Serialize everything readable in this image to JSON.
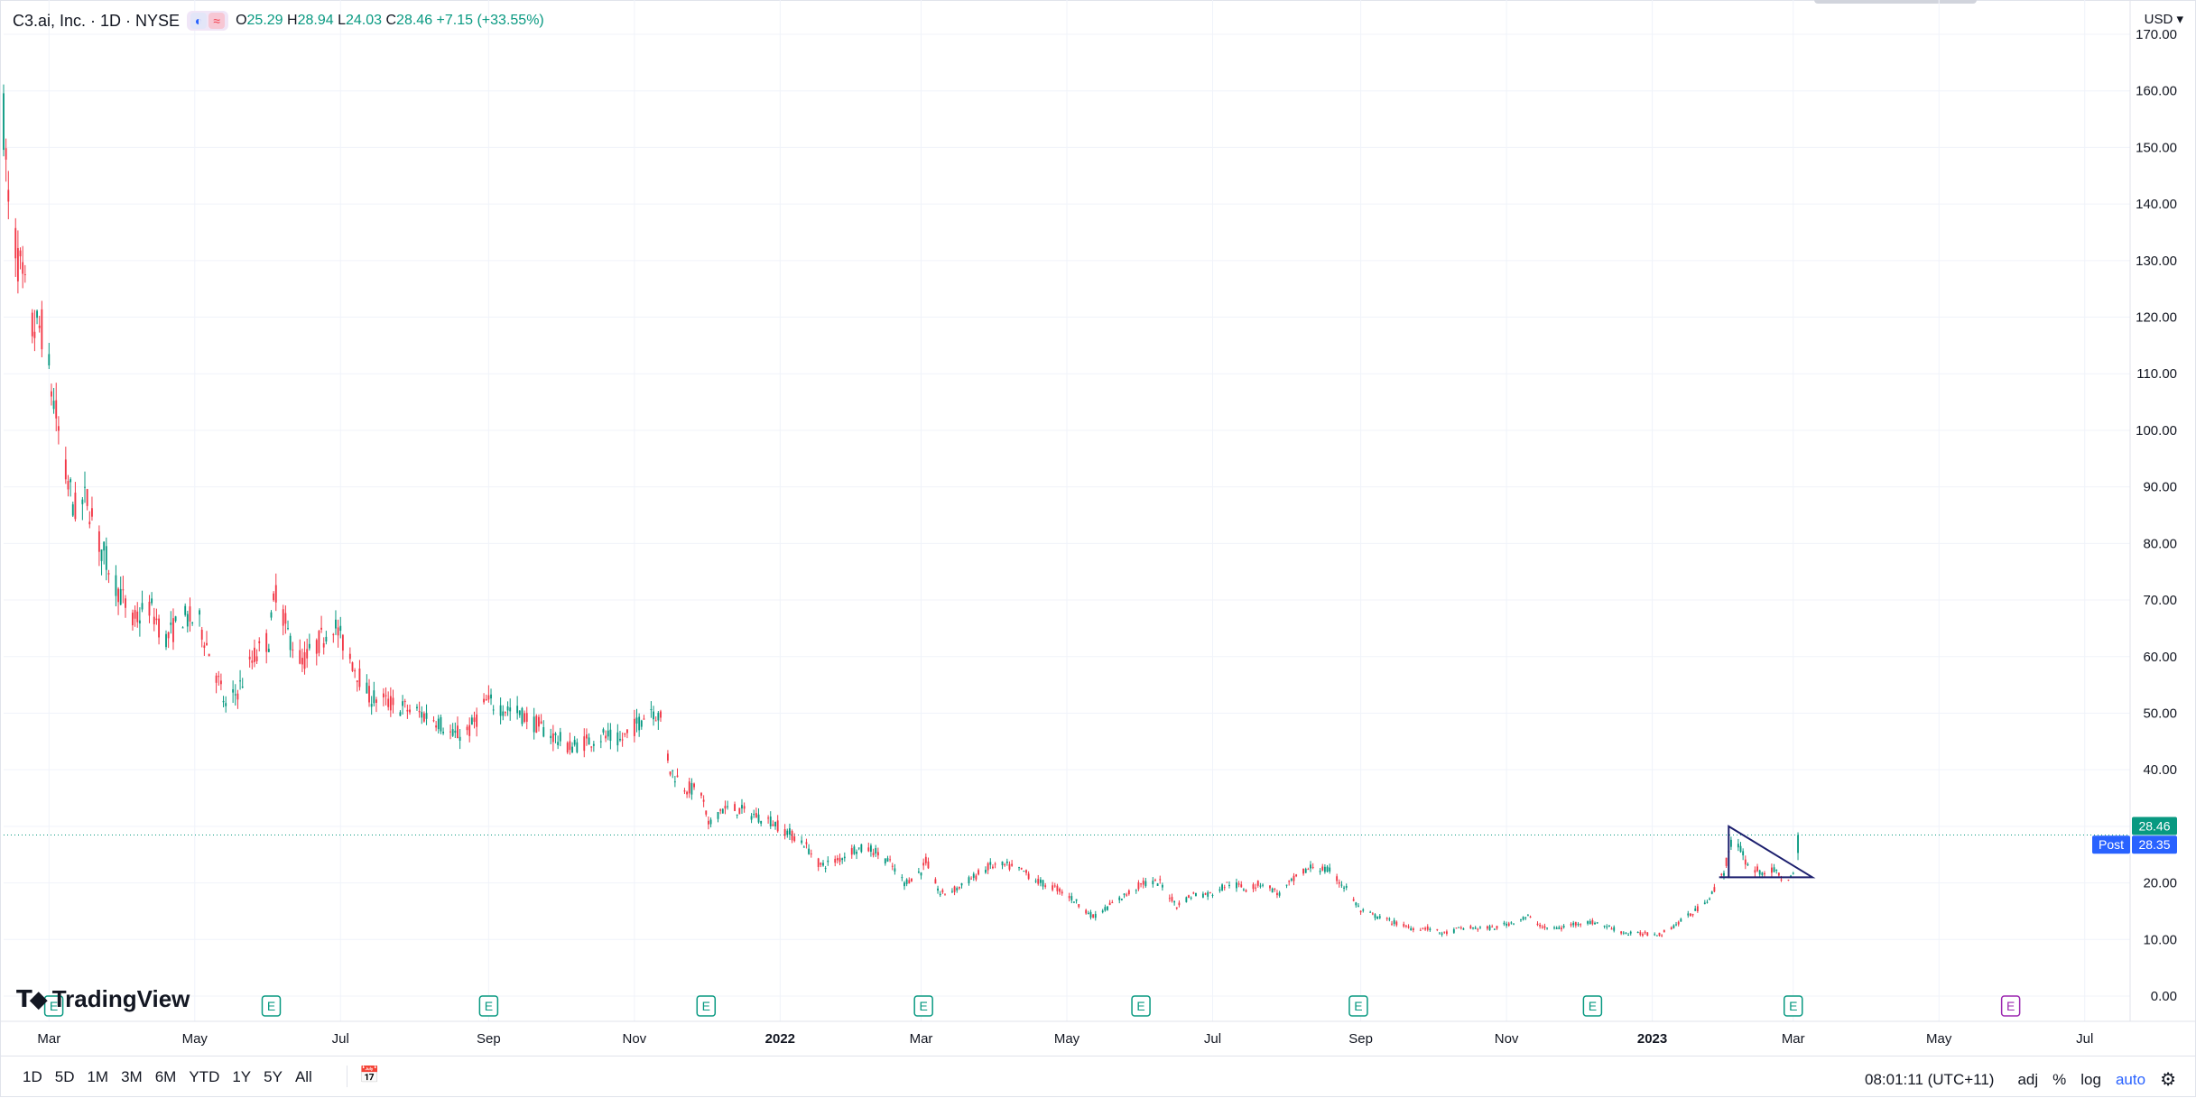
{
  "legend": {
    "title": "C3.ai, Inc. · 1D · NYSE",
    "icons": [
      "moon-icon",
      "wave-icon"
    ],
    "open_label": "O",
    "open_value": "25.29",
    "high_label": "H",
    "high_value": "28.94",
    "low_label": "L",
    "low_value": "24.03",
    "close_label": "C",
    "close_value": "28.46",
    "change": "+7.15 (+33.55%)"
  },
  "currency": "USD",
  "logo": {
    "text": "TradingView"
  },
  "bottom_bar": {
    "ranges": [
      "1D",
      "5D",
      "1M",
      "3M",
      "6M",
      "YTD",
      "1Y",
      "5Y",
      "All"
    ],
    "clock": "08:01:11 (UTC+11)",
    "adj": "adj",
    "percent": "%",
    "log": "log",
    "auto": "auto"
  },
  "colors": {
    "up": "#089981",
    "down": "#f23645",
    "grid": "#f0f3fa",
    "accent": "#2962ff",
    "earnings": "#089981",
    "earnings_future": "#9c27b0",
    "pattern": "#1c1f6e"
  },
  "chart_data": {
    "type": "candlestick",
    "title": "C3.ai, Inc. · 1D · NYSE",
    "y_axis": {
      "min": 0,
      "max": 170,
      "ticks": [
        "0.00",
        "10.00",
        "20.00",
        "30.00",
        "40.00",
        "50.00",
        "60.00",
        "70.00",
        "80.00",
        "90.00",
        "100.00",
        "110.00",
        "120.00",
        "130.00",
        "140.00",
        "150.00",
        "160.00",
        "170.00"
      ]
    },
    "x_axis": {
      "start": "2021-02-10",
      "end": "2023-07-20",
      "ticks": [
        {
          "date": "2021-03-01",
          "label": "Mar",
          "bold": false
        },
        {
          "date": "2021-05-01",
          "label": "May",
          "bold": false
        },
        {
          "date": "2021-07-01",
          "label": "Jul",
          "bold": false
        },
        {
          "date": "2021-09-01",
          "label": "Sep",
          "bold": false
        },
        {
          "date": "2021-11-01",
          "label": "Nov",
          "bold": false
        },
        {
          "date": "2022-01-01",
          "label": "2022",
          "bold": true
        },
        {
          "date": "2022-03-01",
          "label": "Mar",
          "bold": false
        },
        {
          "date": "2022-05-01",
          "label": "May",
          "bold": false
        },
        {
          "date": "2022-07-01",
          "label": "Jul",
          "bold": false
        },
        {
          "date": "2022-09-01",
          "label": "Sep",
          "bold": false
        },
        {
          "date": "2022-11-01",
          "label": "Nov",
          "bold": false
        },
        {
          "date": "2023-01-01",
          "label": "2023",
          "bold": true
        },
        {
          "date": "2023-03-01",
          "label": "Mar",
          "bold": false
        },
        {
          "date": "2023-05-01",
          "label": "May",
          "bold": false
        },
        {
          "date": "2023-07-01",
          "label": "Jul",
          "bold": false
        }
      ]
    },
    "price_path": [
      [
        "2021-02-10",
        155
      ],
      [
        "2021-02-12",
        140
      ],
      [
        "2021-02-17",
        128
      ],
      [
        "2021-02-22",
        118
      ],
      [
        "2021-02-26",
        118
      ],
      [
        "2021-03-03",
        105
      ],
      [
        "2021-03-08",
        92
      ],
      [
        "2021-03-12",
        86
      ],
      [
        "2021-03-17",
        88
      ],
      [
        "2021-03-22",
        80
      ],
      [
        "2021-03-29",
        73
      ],
      [
        "2021-04-05",
        66
      ],
      [
        "2021-04-12",
        69
      ],
      [
        "2021-04-19",
        63
      ],
      [
        "2021-04-26",
        67
      ],
      [
        "2021-05-03",
        66
      ],
      [
        "2021-05-10",
        57
      ],
      [
        "2021-05-14",
        51
      ],
      [
        "2021-05-19",
        54
      ],
      [
        "2021-05-26",
        60
      ],
      [
        "2021-06-01",
        63
      ],
      [
        "2021-06-04",
        72
      ],
      [
        "2021-06-09",
        64
      ],
      [
        "2021-06-15",
        59
      ],
      [
        "2021-06-21",
        62
      ],
      [
        "2021-06-28",
        66
      ],
      [
        "2021-07-06",
        59
      ],
      [
        "2021-07-13",
        53
      ],
      [
        "2021-07-20",
        52
      ],
      [
        "2021-07-27",
        51
      ],
      [
        "2021-08-03",
        50
      ],
      [
        "2021-08-10",
        49
      ],
      [
        "2021-08-17",
        46
      ],
      [
        "2021-08-24",
        47
      ],
      [
        "2021-08-31",
        52
      ],
      [
        "2021-09-07",
        51
      ],
      [
        "2021-09-14",
        50
      ],
      [
        "2021-09-21",
        48
      ],
      [
        "2021-09-28",
        46
      ],
      [
        "2021-10-05",
        44
      ],
      [
        "2021-10-12",
        45
      ],
      [
        "2021-10-19",
        46
      ],
      [
        "2021-10-26",
        45
      ],
      [
        "2021-11-02",
        48
      ],
      [
        "2021-11-08",
        51
      ],
      [
        "2021-11-12",
        49
      ],
      [
        "2021-11-16",
        40
      ],
      [
        "2021-11-22",
        37
      ],
      [
        "2021-11-29",
        36
      ],
      [
        "2021-12-02",
        30
      ],
      [
        "2021-12-07",
        33
      ],
      [
        "2021-12-14",
        33
      ],
      [
        "2021-12-21",
        32
      ],
      [
        "2021-12-28",
        31
      ],
      [
        "2022-01-04",
        29
      ],
      [
        "2022-01-11",
        27
      ],
      [
        "2022-01-18",
        23
      ],
      [
        "2022-01-25",
        24
      ],
      [
        "2022-02-01",
        26
      ],
      [
        "2022-02-08",
        26
      ],
      [
        "2022-02-15",
        24
      ],
      [
        "2022-02-22",
        20
      ],
      [
        "2022-03-01",
        22
      ],
      [
        "2022-03-03",
        24
      ],
      [
        "2022-03-09",
        18
      ],
      [
        "2022-03-16",
        19
      ],
      [
        "2022-03-23",
        21
      ],
      [
        "2022-03-30",
        23
      ],
      [
        "2022-04-06",
        23
      ],
      [
        "2022-04-13",
        22
      ],
      [
        "2022-04-20",
        20
      ],
      [
        "2022-04-27",
        19
      ],
      [
        "2022-05-04",
        17
      ],
      [
        "2022-05-12",
        14
      ],
      [
        "2022-05-19",
        16
      ],
      [
        "2022-05-26",
        18
      ],
      [
        "2022-06-02",
        20
      ],
      [
        "2022-06-09",
        20
      ],
      [
        "2022-06-16",
        16
      ],
      [
        "2022-06-23",
        18
      ],
      [
        "2022-06-30",
        18
      ],
      [
        "2022-07-08",
        20
      ],
      [
        "2022-07-15",
        19
      ],
      [
        "2022-07-22",
        20
      ],
      [
        "2022-07-29",
        18
      ],
      [
        "2022-08-05",
        21
      ],
      [
        "2022-08-12",
        23
      ],
      [
        "2022-08-19",
        22
      ],
      [
        "2022-08-26",
        19
      ],
      [
        "2022-09-01",
        15
      ],
      [
        "2022-09-08",
        14
      ],
      [
        "2022-09-15",
        13
      ],
      [
        "2022-09-22",
        12
      ],
      [
        "2022-09-29",
        12
      ],
      [
        "2022-10-06",
        11
      ],
      [
        "2022-10-13",
        12
      ],
      [
        "2022-10-20",
        12
      ],
      [
        "2022-10-27",
        12
      ],
      [
        "2022-11-03",
        13
      ],
      [
        "2022-11-10",
        14
      ],
      [
        "2022-11-17",
        12
      ],
      [
        "2022-11-24",
        12
      ],
      [
        "2022-12-01",
        13
      ],
      [
        "2022-12-08",
        13
      ],
      [
        "2022-12-15",
        12
      ],
      [
        "2022-12-22",
        11
      ],
      [
        "2022-12-29",
        11
      ],
      [
        "2023-01-05",
        11
      ],
      [
        "2023-01-12",
        13
      ],
      [
        "2023-01-19",
        15
      ],
      [
        "2023-01-26",
        18
      ],
      [
        "2023-01-31",
        22
      ],
      [
        "2023-02-03",
        27
      ],
      [
        "2023-02-07",
        26
      ],
      [
        "2023-02-10",
        23
      ],
      [
        "2023-02-15",
        22
      ],
      [
        "2023-02-21",
        22
      ],
      [
        "2023-02-24",
        21
      ],
      [
        "2023-02-28",
        21
      ],
      [
        "2023-03-02",
        21.3
      ]
    ],
    "last_bar": {
      "date": "2023-03-03",
      "open": 25.29,
      "high": 28.94,
      "low": 24.03,
      "close": 28.46
    },
    "price_labels": [
      {
        "label": "",
        "value": 28.46,
        "text": "28.46",
        "color": "#089981"
      },
      {
        "label": "Post",
        "value": 28.35,
        "text": "28.35",
        "color": "#2962ff"
      }
    ],
    "earnings_markers": [
      {
        "date": "2021-03-03",
        "label": "E",
        "future": false
      },
      {
        "date": "2021-06-02",
        "label": "E",
        "future": false
      },
      {
        "date": "2021-09-01",
        "label": "E",
        "future": false
      },
      {
        "date": "2021-12-01",
        "label": "E",
        "future": false
      },
      {
        "date": "2022-03-02",
        "label": "E",
        "future": false
      },
      {
        "date": "2022-06-01",
        "label": "E",
        "future": false
      },
      {
        "date": "2022-08-31",
        "label": "E",
        "future": false
      },
      {
        "date": "2022-12-07",
        "label": "E",
        "future": false
      },
      {
        "date": "2023-03-01",
        "label": "E",
        "future": false
      },
      {
        "date": "2023-05-31",
        "label": "E",
        "future": true
      }
    ],
    "triangle_pattern": [
      [
        "2023-02-02",
        30
      ],
      [
        "2023-03-09",
        21
      ],
      [
        "2023-02-02",
        21
      ]
    ],
    "grid": true
  }
}
